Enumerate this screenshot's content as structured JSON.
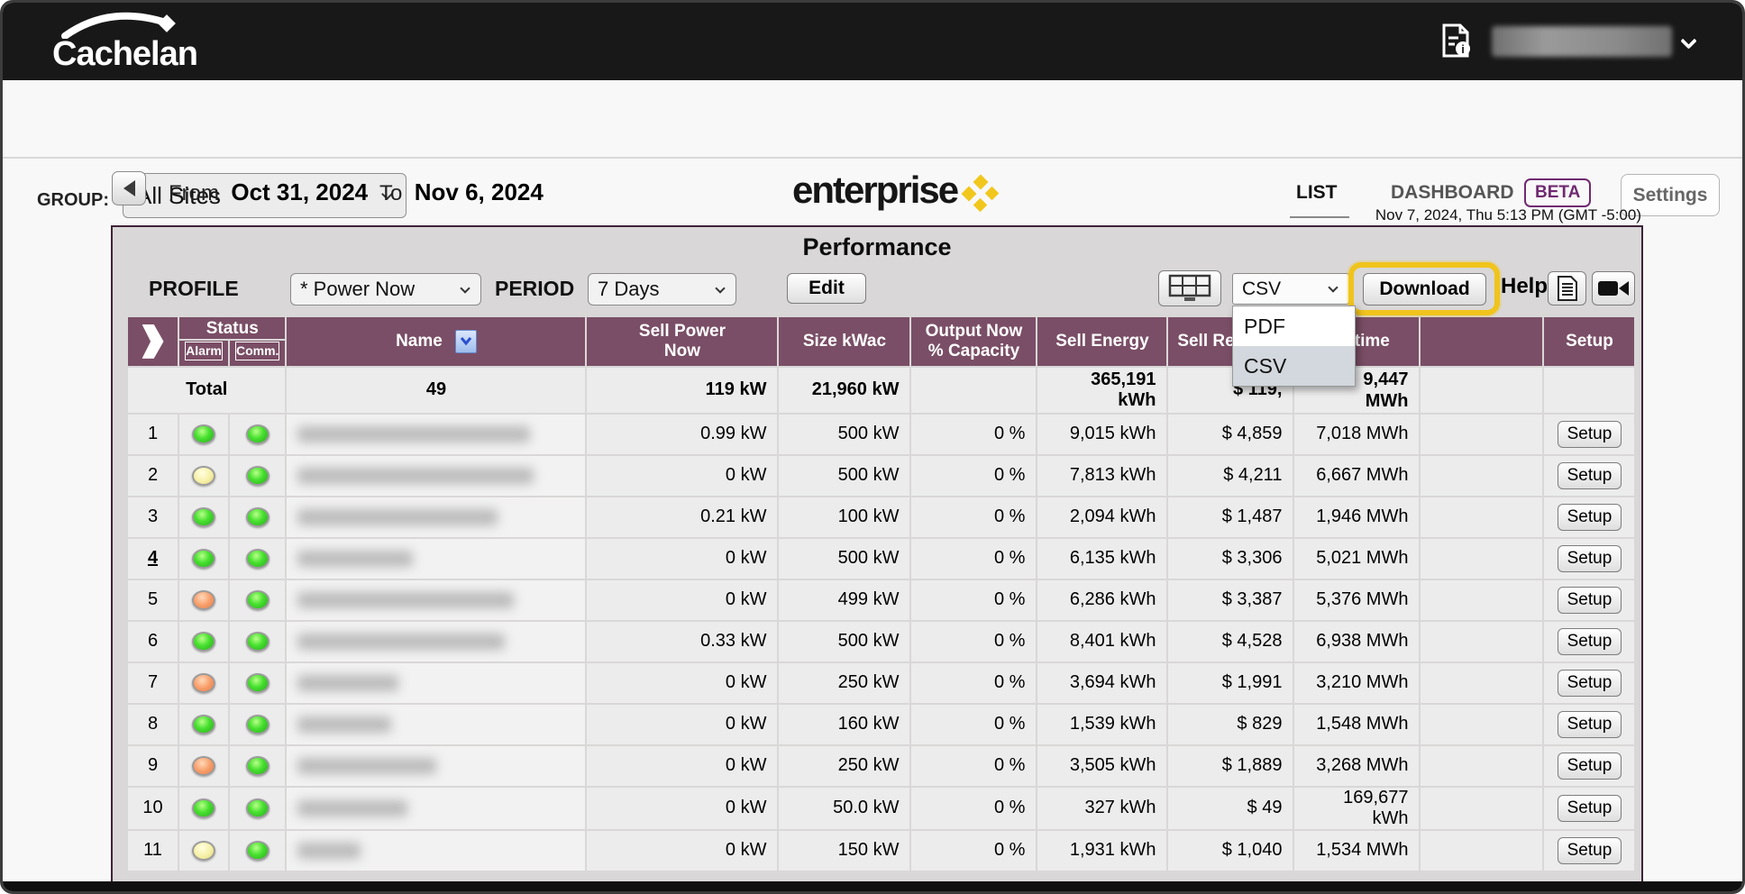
{
  "colors": {
    "topbar_bg": "#181818",
    "accent_yellow": "#f2c71d",
    "table_header_purple": "#7a4e66",
    "panel_border_purple": "#3f2438",
    "beta_purple": "#702a70",
    "row_link_blue": "#1a3faa",
    "download_highlight_ring": "#f0c41c",
    "led_green": "#46e02e",
    "led_yellow": "#f6f0a6",
    "led_orange": "#f79a64"
  },
  "topbar": {
    "brand": "Cachelan"
  },
  "nav": {
    "group_label": "GROUP:",
    "group_value": "All Sites",
    "logo_text": "enterprise",
    "tab_list": "LIST",
    "tab_dashboard": "DASHBOARD",
    "beta_badge": "BETA",
    "settings_button": "Settings"
  },
  "datebar": {
    "from_label": "From",
    "from_date": "Oct 31, 2024",
    "to_label": "To",
    "to_date": "Nov 6, 2024",
    "timestamp": "Nov 7, 2024, Thu 5:13 PM (GMT -5:00)"
  },
  "panel": {
    "title": "Performance",
    "profile_label": "PROFILE",
    "profile_value": "* Power Now",
    "period_label": "PERIOD",
    "period_value": "7 Days",
    "edit_button": "Edit",
    "format_value": "CSV",
    "format_options": [
      "PDF",
      "CSV"
    ],
    "format_selected": "CSV",
    "download_button": "Download",
    "help_label": "Help"
  },
  "table": {
    "headers": {
      "status": "Status",
      "alarm": "Alarm",
      "comm": "Comm.",
      "name": "Name",
      "sell_power_now": "Sell Power Now",
      "size": "Size kWac",
      "output": "Output Now % Capacity",
      "sell_energy": "Sell Energy",
      "sell_revenue": "Sell Revenue",
      "lifetime": "Lifetime",
      "setup": "Setup"
    },
    "total_row": {
      "label": "Total",
      "count": "49",
      "power": "119 kW",
      "size": "21,960 kW",
      "output": "",
      "energy": "365,191 kWh",
      "revenue": "$ 119,",
      "lifetime": "9,447 MWh"
    },
    "setup_button": "Setup",
    "rows": [
      {
        "num": "1",
        "link": false,
        "alarm": "green",
        "comm": "green",
        "power": "0.99 kW",
        "size": "500 kW",
        "output": "0 %",
        "energy": "9,015 kWh",
        "revenue": "$ 4,859",
        "lifetime": "7,018 MWh",
        "blur_w": 258
      },
      {
        "num": "2",
        "link": false,
        "alarm": "yellow",
        "comm": "green",
        "power": "0 kW",
        "size": "500 kW",
        "output": "0 %",
        "energy": "7,813 kWh",
        "revenue": "$ 4,211",
        "lifetime": "6,667 MWh",
        "blur_w": 262
      },
      {
        "num": "3",
        "link": false,
        "alarm": "green",
        "comm": "green",
        "power": "0.21 kW",
        "size": "100 kW",
        "output": "0 %",
        "energy": "2,094 kWh",
        "revenue": "$ 1,487",
        "lifetime": "1,946 MWh",
        "blur_w": 222
      },
      {
        "num": "4",
        "link": true,
        "alarm": "green",
        "comm": "green",
        "power": "0 kW",
        "size": "500 kW",
        "output": "0 %",
        "energy": "6,135 kWh",
        "revenue": "$ 3,306",
        "lifetime": "5,021 MWh",
        "blur_w": 128
      },
      {
        "num": "5",
        "link": false,
        "alarm": "orange",
        "comm": "green",
        "power": "0 kW",
        "size": "499 kW",
        "output": "0 %",
        "energy": "6,286 kWh",
        "revenue": "$ 3,387",
        "lifetime": "5,376 MWh",
        "blur_w": 240
      },
      {
        "num": "6",
        "link": false,
        "alarm": "green",
        "comm": "green",
        "power": "0.33 kW",
        "size": "500 kW",
        "output": "0 %",
        "energy": "8,401 kWh",
        "revenue": "$ 4,528",
        "lifetime": "6,938 MWh",
        "blur_w": 230
      },
      {
        "num": "7",
        "link": false,
        "alarm": "orange",
        "comm": "green",
        "power": "0 kW",
        "size": "250 kW",
        "output": "0 %",
        "energy": "3,694 kWh",
        "revenue": "$ 1,991",
        "lifetime": "3,210 MWh",
        "blur_w": 112
      },
      {
        "num": "8",
        "link": false,
        "alarm": "green",
        "comm": "green",
        "power": "0 kW",
        "size": "160 kW",
        "output": "0 %",
        "energy": "1,539 kWh",
        "revenue": "$ 829",
        "lifetime": "1,548 MWh",
        "blur_w": 104
      },
      {
        "num": "9",
        "link": false,
        "alarm": "orange",
        "comm": "green",
        "power": "0 kW",
        "size": "250 kW",
        "output": "0 %",
        "energy": "3,505 kWh",
        "revenue": "$ 1,889",
        "lifetime": "3,268 MWh",
        "blur_w": 154
      },
      {
        "num": "10",
        "link": false,
        "alarm": "green",
        "comm": "green",
        "power": "0 kW",
        "size": "50.0 kW",
        "output": "0 %",
        "energy": "327 kWh",
        "revenue": "$ 49",
        "lifetime": "169,677 kWh",
        "blur_w": 122
      },
      {
        "num": "11",
        "link": false,
        "alarm": "yellow",
        "comm": "green",
        "power": "0 kW",
        "size": "150 kW",
        "output": "0 %",
        "energy": "1,931 kWh",
        "revenue": "$ 1,040",
        "lifetime": "1,534 MWh",
        "blur_w": 70
      }
    ]
  }
}
